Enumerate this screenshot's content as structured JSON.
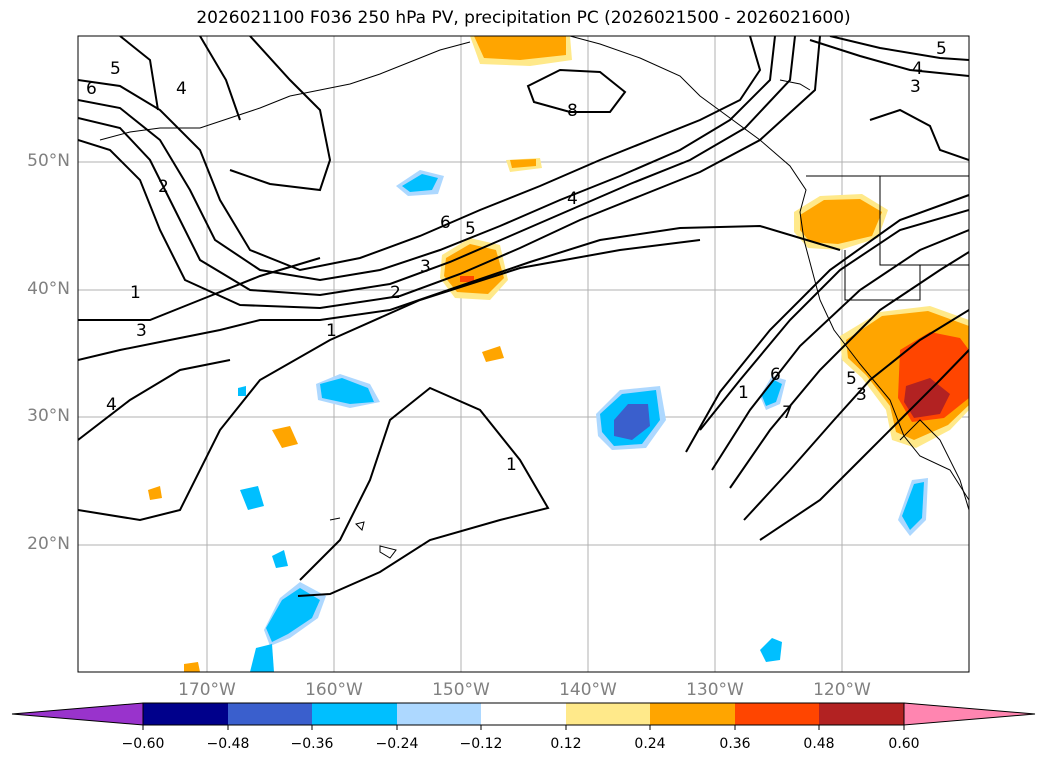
{
  "title": "2026021100 F036 250 hPa PV, precipitation PC (2026021500 - 2026021600)",
  "lat_labels": [
    "50°N",
    "40°N",
    "30°N",
    "20°N"
  ],
  "lon_labels": [
    "170°W",
    "160°W",
    "150°W",
    "140°W",
    "130°W",
    "120°W"
  ],
  "contour_labels": [
    "5",
    "4",
    "6",
    "2",
    "1",
    "3",
    "4",
    "6",
    "5",
    "3",
    "2",
    "1",
    "8",
    "4",
    "3",
    "5",
    "6",
    "1",
    "7",
    "1",
    "5",
    "3",
    "4"
  ],
  "colorbar": {
    "ticks": [
      "−0.60",
      "−0.48",
      "−0.36",
      "−0.24",
      "−0.12",
      "0.12",
      "0.24",
      "0.36",
      "0.48",
      "0.60"
    ],
    "colors": [
      "#9933cc",
      "#00008b",
      "#3a5fcd",
      "#00bfff",
      "#add8ff",
      "#ffffff",
      "#ffe98a",
      "#ffa500",
      "#ff4500",
      "#b22222",
      "#ff85b0"
    ]
  },
  "fill_colors": {
    "neg_light": "#add8ff",
    "neg": "#00bfff",
    "neg_dark": "#3a5fcd",
    "pos_light": "#ffe98a",
    "pos": "#ffa500",
    "pos_dark": "#ff4500",
    "pos_darker": "#b22222"
  }
}
